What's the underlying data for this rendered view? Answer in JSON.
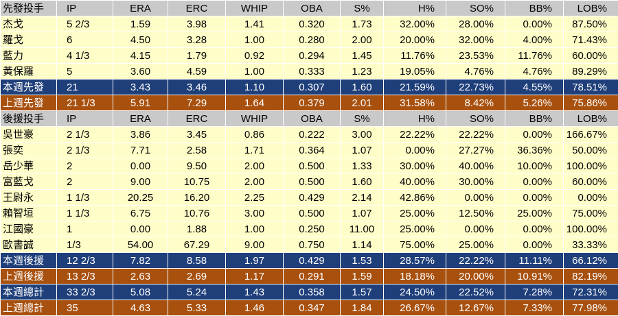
{
  "columns": [
    "IP",
    "ERA",
    "ERC",
    "WHIP",
    "OBA",
    "S%",
    "H%",
    "SO%",
    "BB%",
    "LOB%"
  ],
  "sections": [
    {
      "header": "先發投手",
      "rows": [
        {
          "name": "杰戈",
          "values": [
            "5 2/3",
            "1.59",
            "3.98",
            "1.41",
            "0.320",
            "1.73",
            "32.00%",
            "28.00%",
            "0.00%",
            "87.50%"
          ]
        },
        {
          "name": "羅戈",
          "values": [
            "6",
            "4.50",
            "3.28",
            "1.00",
            "0.280",
            "2.00",
            "20.00%",
            "32.00%",
            "4.00%",
            "71.43%"
          ]
        },
        {
          "name": "藍力",
          "values": [
            "4 1/3",
            "4.15",
            "1.79",
            "0.92",
            "0.294",
            "1.45",
            "11.76%",
            "23.53%",
            "11.76%",
            "60.00%"
          ]
        },
        {
          "name": "黃保羅",
          "values": [
            "5",
            "3.60",
            "4.59",
            "1.00",
            "0.333",
            "1.23",
            "19.05%",
            "4.76%",
            "4.76%",
            "89.29%"
          ]
        }
      ],
      "totals": [
        {
          "type": "this",
          "name": "本週先發",
          "values": [
            "21",
            "3.43",
            "3.46",
            "1.10",
            "0.307",
            "1.60",
            "21.59%",
            "22.73%",
            "4.55%",
            "78.51%"
          ]
        },
        {
          "type": "last",
          "name": "上週先發",
          "values": [
            "21 1/3",
            "5.91",
            "7.29",
            "1.64",
            "0.379",
            "2.01",
            "31.58%",
            "8.42%",
            "5.26%",
            "75.86%"
          ]
        }
      ]
    },
    {
      "header": "後援投手",
      "rows": [
        {
          "name": "吳世豪",
          "values": [
            "2 1/3",
            "3.86",
            "3.45",
            "0.86",
            "0.222",
            "3.00",
            "22.22%",
            "22.22%",
            "0.00%",
            "166.67%"
          ]
        },
        {
          "name": "張奕",
          "values": [
            "2 1/3",
            "7.71",
            "2.58",
            "1.71",
            "0.364",
            "1.07",
            "0.00%",
            "27.27%",
            "36.36%",
            "50.00%"
          ]
        },
        {
          "name": "岳少華",
          "values": [
            "2",
            "0.00",
            "9.50",
            "2.00",
            "0.500",
            "1.33",
            "30.00%",
            "40.00%",
            "10.00%",
            "100.00%"
          ]
        },
        {
          "name": "富藍戈",
          "values": [
            "2",
            "9.00",
            "10.75",
            "2.00",
            "0.500",
            "1.60",
            "40.00%",
            "30.00%",
            "0.00%",
            "60.00%"
          ]
        },
        {
          "name": "王尉永",
          "values": [
            "1 1/3",
            "20.25",
            "16.20",
            "2.25",
            "0.429",
            "2.14",
            "42.86%",
            "0.00%",
            "0.00%",
            "0.00%"
          ]
        },
        {
          "name": "賴智垣",
          "values": [
            "1 1/3",
            "6.75",
            "10.76",
            "3.00",
            "0.500",
            "1.07",
            "25.00%",
            "12.50%",
            "25.00%",
            "75.00%"
          ]
        },
        {
          "name": "江國豪",
          "values": [
            "1",
            "0.00",
            "1.88",
            "1.00",
            "0.250",
            "11.00",
            "25.00%",
            "0.00%",
            "0.00%",
            "100.00%"
          ]
        },
        {
          "name": "歐書誠",
          "values": [
            "1/3",
            "54.00",
            "67.29",
            "9.00",
            "0.750",
            "1.14",
            "75.00%",
            "25.00%",
            "0.00%",
            "33.33%"
          ]
        }
      ],
      "totals": [
        {
          "type": "this",
          "name": "本週後援",
          "values": [
            "12 2/3",
            "7.82",
            "8.58",
            "1.97",
            "0.429",
            "1.53",
            "28.57%",
            "22.22%",
            "11.11%",
            "66.12%"
          ]
        },
        {
          "type": "last",
          "name": "上週後援",
          "values": [
            "13 2/3",
            "2.63",
            "2.69",
            "1.17",
            "0.291",
            "1.59",
            "18.18%",
            "20.00%",
            "10.91%",
            "82.19%"
          ]
        },
        {
          "type": "this",
          "name": "本週總計",
          "values": [
            "33 2/3",
            "5.08",
            "5.24",
            "1.43",
            "0.358",
            "1.57",
            "24.50%",
            "22.52%",
            "7.28%",
            "72.31%"
          ]
        },
        {
          "type": "last",
          "name": "上週總計",
          "values": [
            "35",
            "4.63",
            "5.33",
            "1.46",
            "0.347",
            "1.84",
            "26.67%",
            "12.67%",
            "7.33%",
            "77.98%"
          ]
        }
      ]
    }
  ],
  "colors": {
    "header_bg": "#c9c9c9",
    "row_bg": "#fffdc8",
    "this_week_bg": "#1f3f7a",
    "last_week_bg": "#a8500e",
    "total_text": "#ffffff"
  }
}
